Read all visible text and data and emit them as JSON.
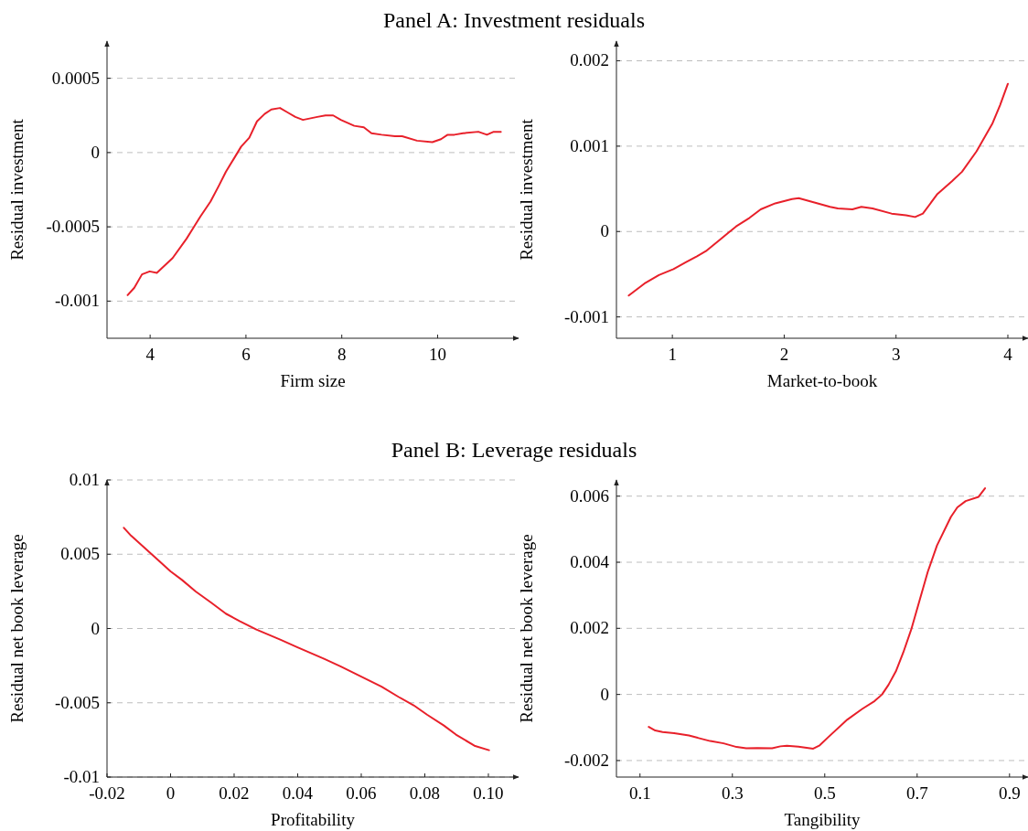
{
  "chart_data": [
    {
      "type": "line",
      "title": "Panel A: Investment residuals",
      "xlabel": "Firm size",
      "ylabel": "Residual investment",
      "xlim": [
        3.1,
        11.69
      ],
      "ylim": [
        -0.00125,
        0.00075
      ],
      "xticks": [
        4,
        6,
        8,
        10
      ],
      "yticks": [
        -0.001,
        -0.0005,
        0,
        0.0005
      ],
      "grid": "y",
      "series": [
        {
          "color": "#e8202a",
          "x": [
            3.53,
            3.67,
            3.83,
            3.99,
            4.14,
            4.47,
            4.76,
            5.05,
            5.26,
            5.44,
            5.58,
            5.75,
            5.9,
            6.07,
            6.23,
            6.39,
            6.53,
            6.71,
            6.87,
            7.03,
            7.19,
            7.49,
            7.66,
            7.82,
            7.98,
            8.26,
            8.46,
            8.62,
            8.83,
            9.11,
            9.26,
            9.57,
            9.89,
            10.07,
            10.21,
            10.35,
            10.53,
            10.85,
            11.03,
            11.17,
            11.32
          ],
          "values": [
            -0.00096,
            -0.00091,
            -0.00082,
            -0.0008,
            -0.00081,
            -0.00071,
            -0.00058,
            -0.00043,
            -0.00033,
            -0.00022,
            -0.00013,
            -4e-05,
            4e-05,
            0.0001,
            0.00021,
            0.00026,
            0.00029,
            0.0003,
            0.00027,
            0.00024,
            0.00022,
            0.00024,
            0.00025,
            0.00025,
            0.00022,
            0.00018,
            0.00017,
            0.00013,
            0.00012,
            0.00011,
            0.00011,
            8e-05,
            7e-05,
            9e-05,
            0.00012,
            0.00012,
            0.00013,
            0.00014,
            0.00012,
            0.00014,
            0.00014
          ]
        }
      ]
    },
    {
      "type": "line",
      "xlabel": "Market-to-book",
      "ylabel": "Residual investment",
      "xlim": [
        0.5,
        4.18
      ],
      "ylim": [
        -0.00125,
        0.00223
      ],
      "xticks": [
        1,
        2,
        3,
        4
      ],
      "yticks": [
        -0.001,
        0,
        0.001,
        0.002
      ],
      "grid": "y",
      "series": [
        {
          "color": "#e8202a",
          "x": [
            0.61,
            0.75,
            0.88,
            1.01,
            1.12,
            1.22,
            1.3,
            1.43,
            1.57,
            1.69,
            1.79,
            1.92,
            2.07,
            2.13,
            2.27,
            2.41,
            2.48,
            2.61,
            2.69,
            2.79,
            2.96,
            3.09,
            3.17,
            3.24,
            3.37,
            3.5,
            3.59,
            3.72,
            3.86,
            3.93,
            4.0
          ],
          "values": [
            -0.00075,
            -0.00061,
            -0.00051,
            -0.00044,
            -0.00036,
            -0.00029,
            -0.00023,
            -9e-05,
            6e-05,
            0.00016,
            0.00026,
            0.00033,
            0.00038,
            0.00039,
            0.00034,
            0.00029,
            0.00027,
            0.00026,
            0.00029,
            0.00027,
            0.00021,
            0.00019,
            0.00017,
            0.00021,
            0.00044,
            0.00059,
            0.0007,
            0.00094,
            0.00126,
            0.00148,
            0.00173
          ]
        }
      ]
    },
    {
      "type": "line",
      "title": "Panel B: Leverage residuals",
      "xlabel": "Profitability",
      "ylabel": "Residual net book leverage",
      "xlim": [
        -0.02,
        0.1095
      ],
      "ylim": [
        -0.01,
        0.01
      ],
      "xticks": [
        -0.02,
        0,
        0.02,
        0.04,
        0.06,
        0.08,
        {
          "value": 0.1,
          "label": "0.10"
        }
      ],
      "yticks": [
        -0.01,
        -0.005,
        0,
        0.005,
        0.01
      ],
      "grid": "y",
      "series": [
        {
          "color": "#e8202a",
          "x": [
            -0.0147,
            -0.0124,
            -0.0081,
            -0.0038,
            0,
            0.0036,
            0.0079,
            0.0127,
            0.0174,
            0.0217,
            0.027,
            0.0345,
            0.0398,
            0.0483,
            0.0536,
            0.06,
            0.0664,
            0.0717,
            0.0765,
            0.0807,
            0.086,
            0.0898,
            0.0956,
            0.1002
          ],
          "values": [
            0.00678,
            0.00624,
            0.00542,
            0.00458,
            0.00385,
            0.00327,
            0.00249,
            0.00175,
            0.001,
            0.0005,
            -7e-05,
            -0.00075,
            -0.00125,
            -0.00204,
            -0.00256,
            -0.00324,
            -0.00392,
            -0.0046,
            -0.00517,
            -0.0058,
            -0.00653,
            -0.00714,
            -0.00789,
            -0.00819
          ]
        }
      ]
    },
    {
      "type": "line",
      "xlabel": "Tangibility",
      "ylabel": "Residual net book leverage",
      "xlim": [
        0.049,
        0.94
      ],
      "ylim": [
        -0.0025,
        0.00649
      ],
      "xticks": [
        0.1,
        0.3,
        0.5,
        0.7,
        0.9
      ],
      "yticks": [
        -0.002,
        0,
        0.002,
        0.004,
        0.006
      ],
      "grid": "y",
      "series": [
        {
          "color": "#e8202a",
          "x": [
            0.119,
            0.133,
            0.149,
            0.174,
            0.206,
            0.227,
            0.252,
            0.281,
            0.309,
            0.33,
            0.354,
            0.386,
            0.404,
            0.418,
            0.443,
            0.475,
            0.489,
            0.507,
            0.549,
            0.581,
            0.608,
            0.624,
            0.638,
            0.654,
            0.67,
            0.688,
            0.705,
            0.723,
            0.743,
            0.773,
            0.787,
            0.805,
            0.833,
            0.847
          ],
          "values": [
            -0.00098,
            -0.00109,
            -0.00114,
            -0.00117,
            -0.00124,
            -0.00132,
            -0.00141,
            -0.00148,
            -0.00159,
            -0.00163,
            -0.00162,
            -0.00163,
            -0.00157,
            -0.00155,
            -0.00158,
            -0.00164,
            -0.00154,
            -0.0013,
            -0.00076,
            -0.00044,
            -0.0002,
            0,
            0.00029,
            0.0007,
            0.00127,
            0.002,
            0.00283,
            0.00371,
            0.00451,
            0.00537,
            0.00566,
            0.00585,
            0.00598,
            0.00624
          ]
        }
      ]
    }
  ]
}
